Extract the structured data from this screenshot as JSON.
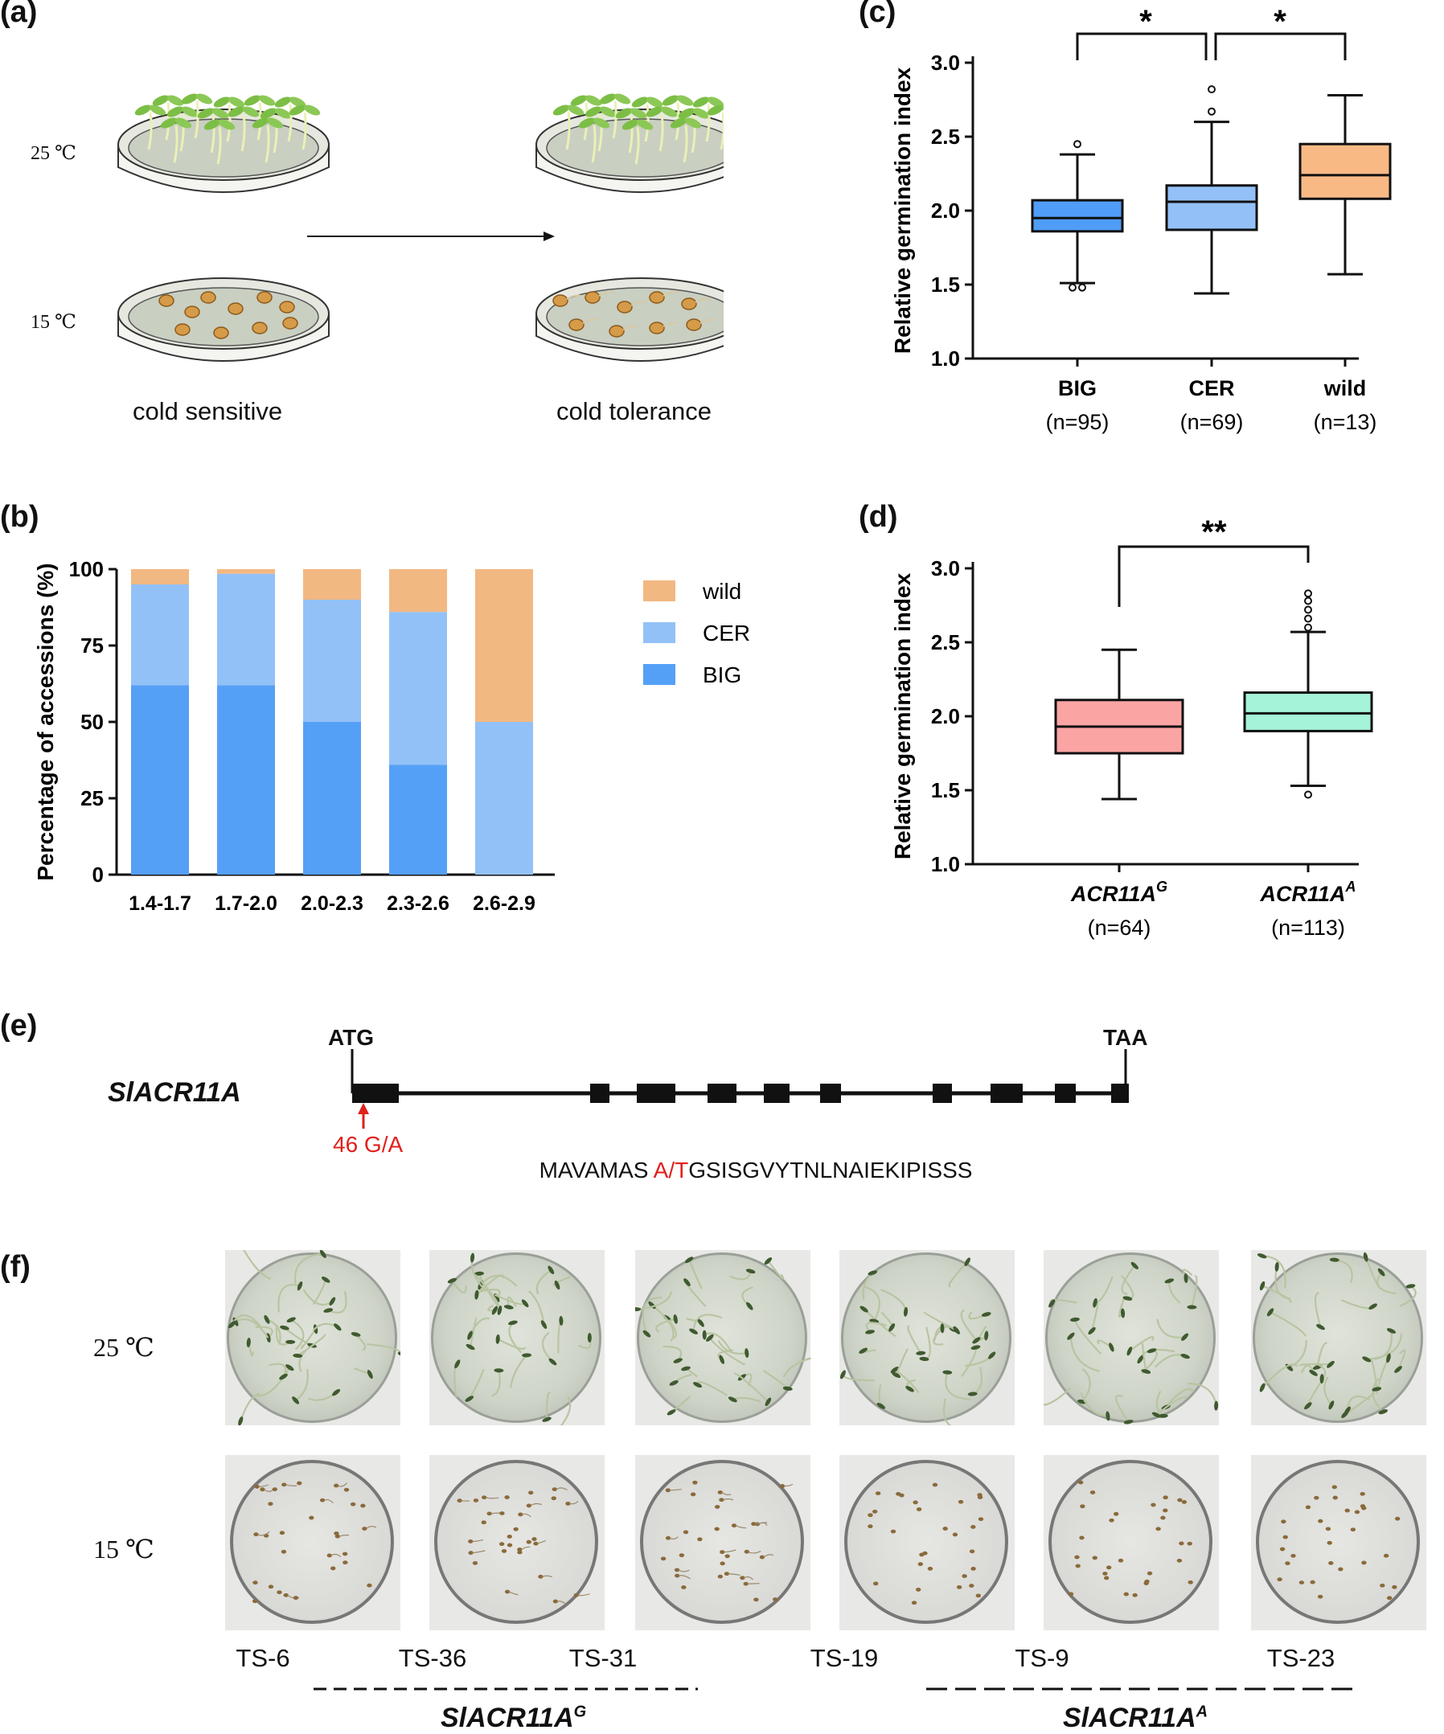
{
  "panel_labels": {
    "a": "(a)",
    "b": "(b)",
    "c": "(c)",
    "d": "(d)",
    "e": "(e)",
    "f": "(f)"
  },
  "panel_a": {
    "temp_warm": "25 ℃",
    "temp_cold": "15 ℃",
    "label_left": "cold sensitive",
    "label_right": "cold tolerance"
  },
  "panel_e": {
    "gene": "SlACR11A",
    "start_codon": "ATG",
    "stop_codon": "TAA",
    "snp": "46 G/A",
    "seq_prefix": "MAVAMAS ",
    "seq_variant": "A/T",
    "seq_suffix": "GSISGVYTNLNAIEKIPISSS"
  },
  "panel_f": {
    "temp_warm": "25 ℃",
    "temp_cold": "15 ℃",
    "accessions": [
      "TS-6",
      "TS-36",
      "TS-31",
      "TS-19",
      "TS-9",
      "TS-23"
    ],
    "group_g": {
      "name": "SlACR11A",
      "sup": "G"
    },
    "group_a": {
      "name": "SlACR11A",
      "sup": "A"
    }
  },
  "colors": {
    "wild": "#f2b882",
    "CER": "#92c1f7",
    "BIG": "#55a0f7",
    "boxACR_G": "#fba4a4",
    "boxACR_A": "#a5f3d9",
    "snp_red": "#e0201b"
  },
  "chart_data": [
    {
      "id": "b",
      "type": "bar",
      "stacked": true,
      "categories": [
        "1.4-1.7",
        "1.7-2.0",
        "2.0-2.3",
        "2.3-2.6",
        "2.6-2.9"
      ],
      "series": [
        {
          "name": "BIG",
          "values": [
            62,
            62,
            50,
            36,
            0
          ]
        },
        {
          "name": "CER",
          "values": [
            33,
            36.5,
            40,
            50,
            50
          ]
        },
        {
          "name": "wild",
          "values": [
            5,
            1.5,
            10,
            14,
            50
          ]
        }
      ],
      "legend": [
        "wild",
        "CER",
        "BIG"
      ],
      "legend_position": "right",
      "ylabel": "Percentage of accessions (%)",
      "yticks": [
        "0",
        "25",
        "50",
        "75",
        "100"
      ],
      "ylim": [
        0,
        100
      ]
    },
    {
      "id": "c",
      "type": "box",
      "ylabel": "Relative germination index",
      "ylim": [
        1.0,
        3.0
      ],
      "yticks": [
        "1.0",
        "1.5",
        "2.0",
        "2.5",
        "3.0"
      ],
      "groups": [
        {
          "name": "BIG",
          "n": "(n=95)",
          "color": "#4f9df7",
          "min": 1.51,
          "q1": 1.86,
          "median": 1.95,
          "q3": 2.07,
          "max": 2.38,
          "outliers": [
            2.45,
            1.48,
            1.48
          ]
        },
        {
          "name": "CER",
          "n": "(n=69)",
          "color": "#93c1f7",
          "min": 1.44,
          "q1": 1.87,
          "median": 2.06,
          "q3": 2.17,
          "max": 2.6,
          "outliers": [
            2.82,
            2.67
          ]
        },
        {
          "name": "wild",
          "n": "(n=13)",
          "color": "#f8b985",
          "min": 1.57,
          "q1": 2.08,
          "median": 2.24,
          "q3": 2.45,
          "max": 2.78,
          "outliers": []
        }
      ],
      "significance": [
        {
          "from": 0,
          "to": 1,
          "label": "*"
        },
        {
          "from": 1,
          "to": 2,
          "label": "*"
        }
      ]
    },
    {
      "id": "d",
      "type": "box",
      "ylabel": "Relative germination index",
      "ylim": [
        1.0,
        3.0
      ],
      "yticks": [
        "1.0",
        "1.5",
        "2.0",
        "2.5",
        "3.0"
      ],
      "groups": [
        {
          "name": "ACR11A",
          "sup": "G",
          "n": "(n=64)",
          "color": "#fba4a4",
          "min": 1.44,
          "q1": 1.75,
          "median": 1.93,
          "q3": 2.11,
          "max": 2.45,
          "outliers": []
        },
        {
          "name": "ACR11A",
          "sup": "A",
          "n": "(n=113)",
          "color": "#a5f3d9",
          "min": 1.53,
          "q1": 1.9,
          "median": 2.02,
          "q3": 2.16,
          "max": 2.57,
          "outliers": [
            2.83,
            2.78,
            2.72,
            2.66,
            2.6,
            1.47
          ]
        }
      ],
      "significance": [
        {
          "from": 0,
          "to": 1,
          "label": "**"
        }
      ]
    }
  ]
}
